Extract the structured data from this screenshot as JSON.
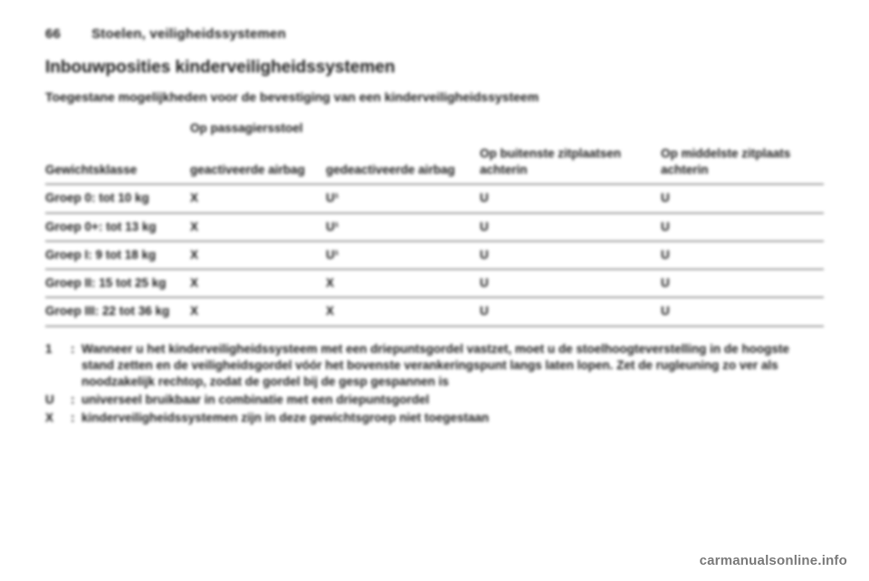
{
  "page": {
    "number": "66",
    "chapter": "Stoelen, veiligheidssystemen"
  },
  "section": {
    "title": "Inbouwposities kinderveiligheidssystemen",
    "subtitle": "Toegestane mogelijkheden voor de bevestiging van een kinderveiligheidssysteem"
  },
  "table": {
    "head": {
      "col0": "Gewichtsklasse",
      "colgroup_span": "Op passagiersstoel",
      "col1": "geactiveerde airbag",
      "col2": "gedeactiveerde airbag",
      "col3": "Op buitenste zitplaatsen achterin",
      "col4": "Op middelste zitplaats achterin"
    },
    "rows": [
      {
        "c0": "Groep 0: tot 10 kg",
        "c1": "X",
        "c2": "U¹",
        "c3": "U",
        "c4": "U"
      },
      {
        "c0": "Groep 0+: tot 13 kg",
        "c1": "X",
        "c2": "U¹",
        "c3": "U",
        "c4": "U"
      },
      {
        "c0": "Groep I: 9 tot 18 kg",
        "c1": "X",
        "c2": "U¹",
        "c3": "U",
        "c4": "U"
      },
      {
        "c0": "Groep II: 15 tot 25 kg",
        "c1": "X",
        "c2": "X",
        "c3": "U",
        "c4": "U"
      },
      {
        "c0": "Groep III: 22 tot 36 kg",
        "c1": "X",
        "c2": "X",
        "c3": "U",
        "c4": "U"
      }
    ]
  },
  "legend": [
    {
      "key": "1",
      "text": "Wanneer u het kinderveiligheidssysteem met een driepuntsgordel vastzet, moet u de stoelhoogteverstelling in de hoogste stand zetten en de veiligheidsgordel vóór het bovenste verankeringspunt langs laten lopen. Zet de rugleuning zo ver als noodzakelijk rechtop, zodat de gordel bij de gesp gespannen is"
    },
    {
      "key": "U",
      "text": "universeel bruikbaar in combinatie met een driepuntsgordel"
    },
    {
      "key": "X",
      "text": "kinderveiligheidssystemen zijn in deze gewichtsgroep niet toegestaan"
    }
  ],
  "watermark": "carmanualsonline.info"
}
